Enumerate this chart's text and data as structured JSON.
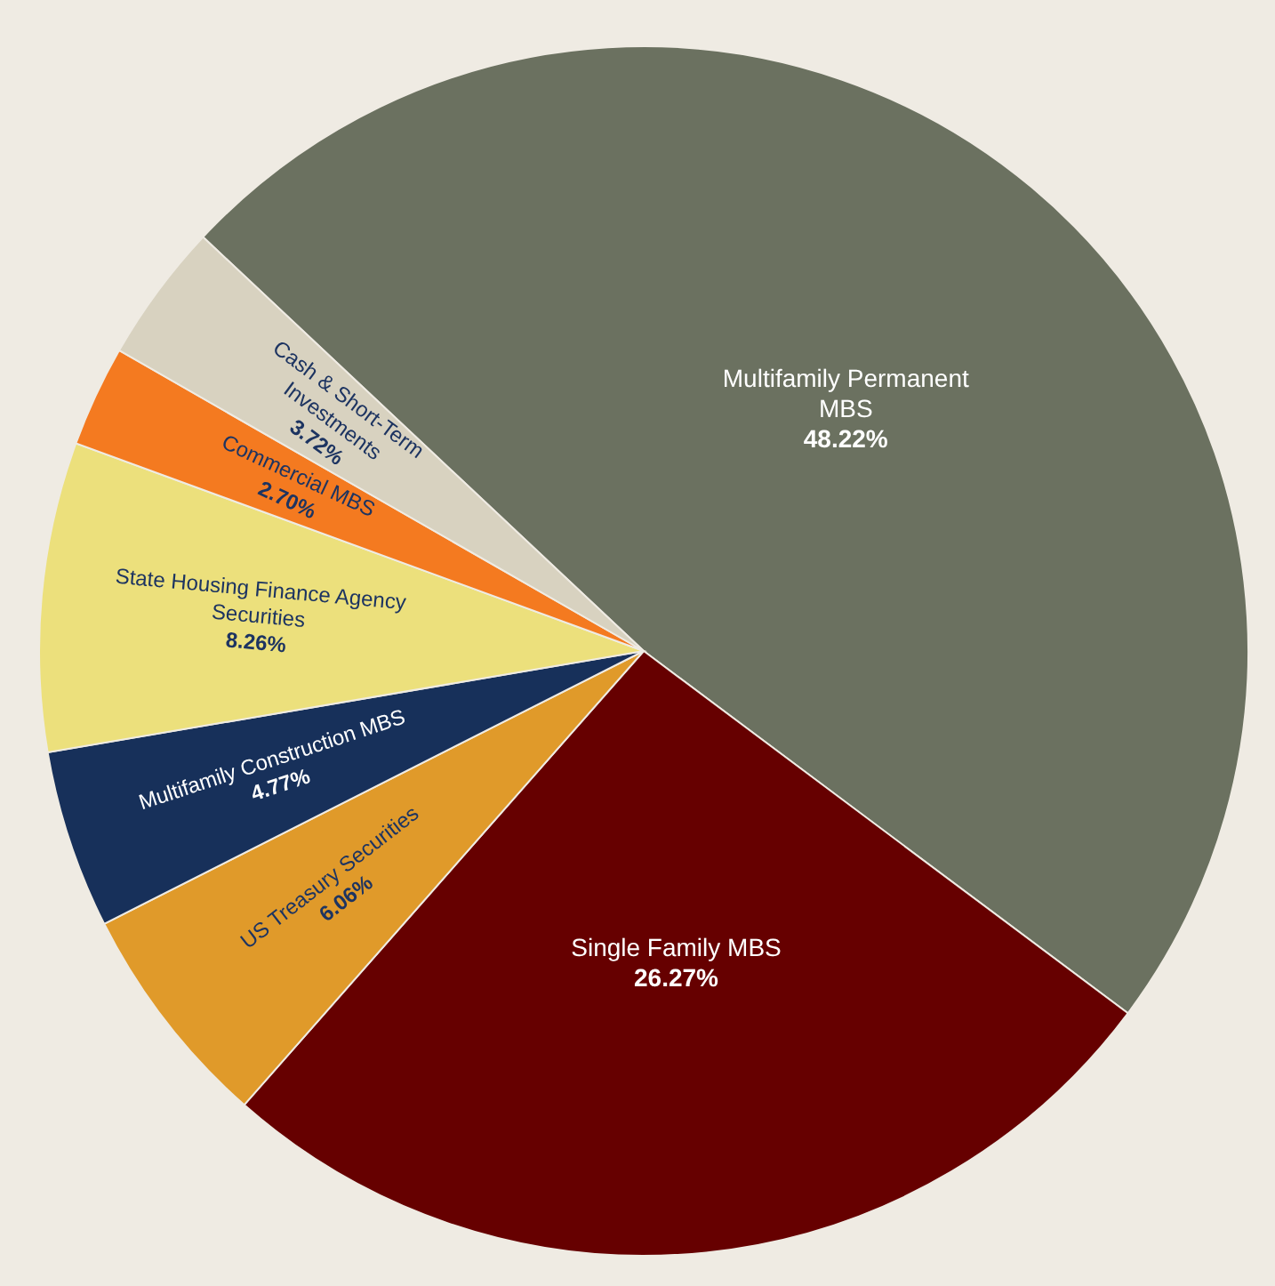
{
  "chart_data": {
    "type": "pie",
    "categories": [
      "Multifamily Permanent MBS",
      "Single Family MBS",
      "US Treasury Securities",
      "Multifamily Construction MBS",
      "State Housing Finance Agency Securities",
      "Commercial MBS",
      "Cash & Short-Term Investments"
    ],
    "values": [
      48.22,
      26.27,
      6.06,
      4.77,
      8.26,
      2.7,
      3.72
    ],
    "colors": [
      "#6b7160",
      "#660000",
      "#e09a2a",
      "#17305a",
      "#ece07c",
      "#f47a20",
      "#d8d2c0"
    ],
    "value_labels": [
      "48.22%",
      "26.27%",
      "6.06%",
      "4.77%",
      "8.26%",
      "2.70%",
      "3.72%"
    ]
  }
}
